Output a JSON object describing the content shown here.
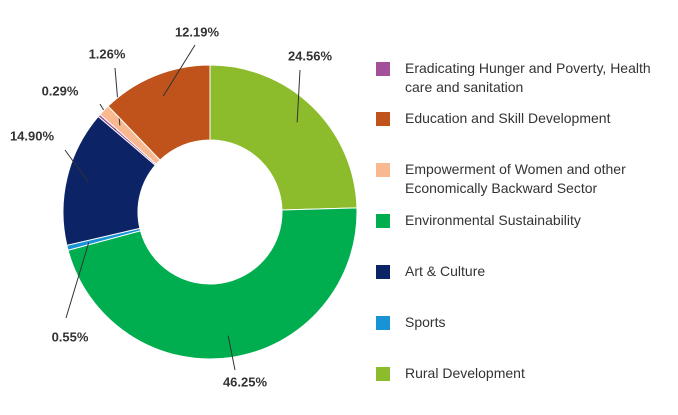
{
  "chart_data": {
    "type": "donut",
    "categories": [
      "Eradicating Hunger and Poverty, Health care and sanitation",
      "Education and Skill Development",
      "Empowerment of Women and other Economically Backward Sector",
      "Environmental Sustainability",
      "Art & Culture",
      "Sports",
      "Rural Development"
    ],
    "values": [
      0.29,
      12.19,
      1.26,
      46.25,
      14.9,
      0.55,
      24.56
    ],
    "value_labels": [
      "0.29%",
      "12.19%",
      "1.26%",
      "46.25%",
      "14.90%",
      "0.55%",
      "24.56%"
    ],
    "colors": [
      "#a3509a",
      "#c0531b",
      "#f8b890",
      "#00ae4f",
      "#0c2366",
      "#1793d6",
      "#8cbc2b"
    ],
    "legend": "right"
  }
}
